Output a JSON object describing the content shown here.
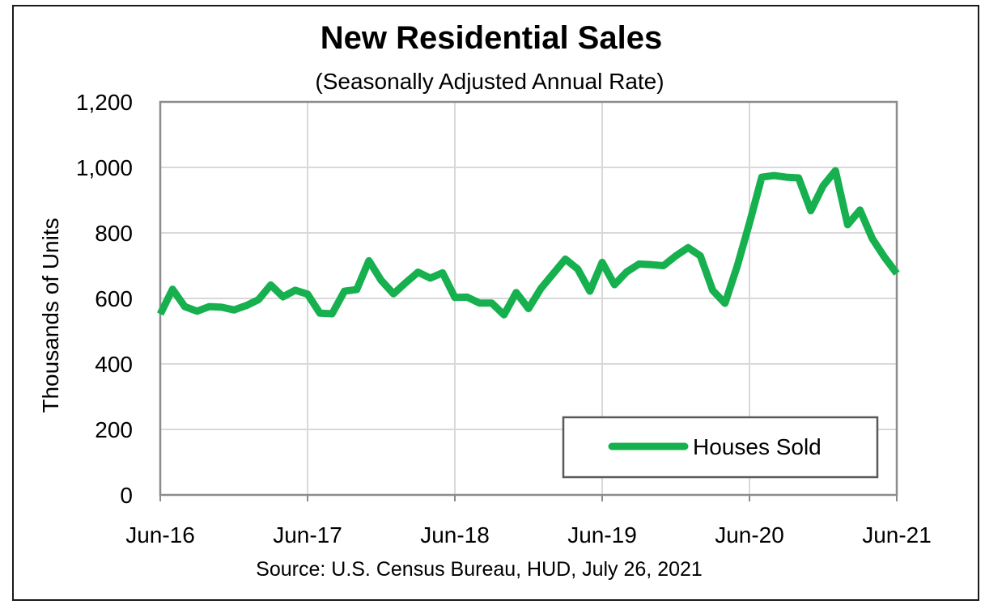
{
  "chart_data": {
    "type": "line",
    "title": "New Residential Sales",
    "subtitle": "(Seasonally Adjusted Annual Rate)",
    "xlabel": "",
    "ylabel": "Thousands of Units",
    "ylim": [
      0,
      1200
    ],
    "yticks": [
      0,
      200,
      400,
      600,
      800,
      1000,
      1200
    ],
    "ytick_labels": [
      "0",
      "200",
      "400",
      "600",
      "800",
      "1,000",
      "1,200"
    ],
    "xlim": [
      "Jun-16",
      "Jun-21"
    ],
    "xtick_labels": [
      "Jun-16",
      "Jun-17",
      "Jun-18",
      "Jun-19",
      "Jun-20",
      "Jun-21"
    ],
    "grid": true,
    "legend_position": "bottom-right",
    "source": "Source:  U.S. Census Bureau, HUD, July 26, 2021",
    "series": [
      {
        "name": "Houses Sold",
        "color": "#16b04f",
        "x": [
          "Jun-16",
          "Jul-16",
          "Aug-16",
          "Sep-16",
          "Oct-16",
          "Nov-16",
          "Dec-16",
          "Jan-17",
          "Feb-17",
          "Mar-17",
          "Apr-17",
          "May-17",
          "Jun-17",
          "Jul-17",
          "Aug-17",
          "Sep-17",
          "Oct-17",
          "Nov-17",
          "Dec-17",
          "Jan-18",
          "Feb-18",
          "Mar-18",
          "Apr-18",
          "May-18",
          "Jun-18",
          "Jul-18",
          "Aug-18",
          "Sep-18",
          "Oct-18",
          "Nov-18",
          "Dec-18",
          "Jan-19",
          "Feb-19",
          "Mar-19",
          "Apr-19",
          "May-19",
          "Jun-19",
          "Jul-19",
          "Aug-19",
          "Sep-19",
          "Oct-19",
          "Nov-19",
          "Dec-19",
          "Jan-20",
          "Feb-20",
          "Mar-20",
          "Apr-20",
          "May-20",
          "Jun-20",
          "Jul-20",
          "Aug-20",
          "Sep-20",
          "Oct-20",
          "Nov-20",
          "Dec-20",
          "Jan-21",
          "Feb-21",
          "Mar-21",
          "Apr-21",
          "May-21",
          "Jun-21"
        ],
        "values": [
          552,
          628,
          575,
          561,
          575,
          573,
          565,
          578,
          596,
          641,
          605,
          625,
          613,
          555,
          553,
          622,
          627,
          715,
          655,
          614,
          648,
          680,
          662,
          678,
          603,
          604,
          586,
          586,
          550,
          618,
          569,
          630,
          675,
          720,
          690,
          622,
          710,
          642,
          681,
          705,
          703,
          700,
          730,
          755,
          730,
          625,
          585,
          698,
          830,
          970,
          975,
          970,
          968,
          868,
          944,
          990,
          825,
          870,
          783,
          726,
          676
        ]
      }
    ]
  }
}
